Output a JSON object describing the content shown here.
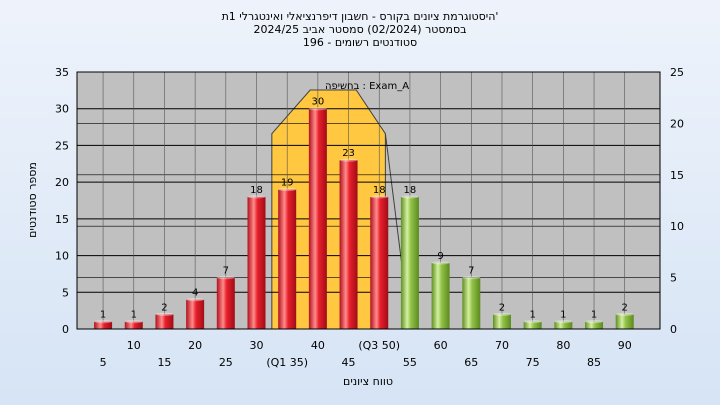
{
  "chart_data": {
    "type": "bar",
    "title_lines": [
      "היסטוגרמת ציונים בקורס - חשבון דיפרנציאלי ואינטגרלי 1ת'",
      "בסמסטר  (02/2024)  סמסטר אביב 2024/25",
      "סטודנטים רשומים - 196"
    ],
    "ylabel": "מספר סטודנטים",
    "xlabel": "טווח ציונים",
    "annotation": "בחשיפה : Exam_A",
    "ylim": [
      0,
      35
    ],
    "y_ticks": [
      0,
      5,
      10,
      15,
      20,
      25,
      30,
      35
    ],
    "y2lim": [
      0,
      25
    ],
    "y2_ticks": [
      0,
      5,
      10,
      15,
      20,
      25
    ],
    "grid": true,
    "categories": [
      "5",
      "10",
      "15",
      "20",
      "25",
      "30",
      "(Q1 35)",
      "40",
      "45",
      "(Q3 50)",
      "55",
      "60",
      "65",
      "70",
      "75",
      "80",
      "85",
      "90"
    ],
    "values": [
      1,
      1,
      2,
      4,
      7,
      18,
      19,
      30,
      23,
      18,
      18,
      9,
      7,
      2,
      1,
      1,
      1,
      2
    ],
    "value_labels": [
      "1",
      "1",
      "2",
      "4",
      "7",
      "18",
      "19",
      "30",
      "23",
      "18",
      "18",
      "9",
      "7",
      "2",
      "1",
      "1",
      "1",
      "2"
    ],
    "bar_colors": [
      "red",
      "red",
      "red",
      "red",
      "red",
      "red",
      "red",
      "red",
      "red",
      "red",
      "green",
      "green",
      "green",
      "green",
      "green",
      "green",
      "green",
      "green"
    ],
    "highlight_range": [
      "(Q1 35)",
      "(Q3 50)"
    ],
    "colors": {
      "red_dark": "#b0101c",
      "red_mid": "#e8202c",
      "red_light": "#ff8c8c",
      "green_dark": "#5f8f22",
      "green_mid": "#93c24a",
      "green_light": "#d4f0a0",
      "plot_bg": "#c0c0c0",
      "highlight": "#ffc840",
      "page_bg": "#e4edf8"
    }
  }
}
